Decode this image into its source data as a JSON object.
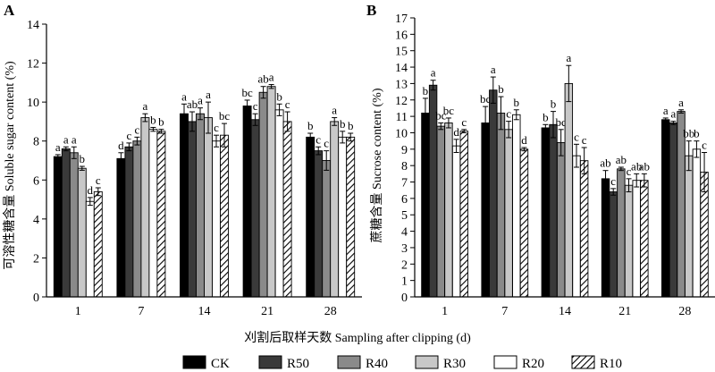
{
  "legend": [
    {
      "label": "CK",
      "fill": "#000000"
    },
    {
      "label": "R50",
      "fill": "#3a3a3a"
    },
    {
      "label": "R40",
      "fill": "#8a8a8a"
    },
    {
      "label": "R30",
      "fill": "#c8c8c8"
    },
    {
      "label": "R20",
      "fill": "#ffffff"
    },
    {
      "label": "R10",
      "fill": "hatch"
    }
  ],
  "shared_xlabel": "刈割后取样天数 Sampling after clipping (d)",
  "chart_data": [
    {
      "type": "bar",
      "panel": "A",
      "ylabel": "可溶性糖含量 Soluble sugar content (%)",
      "ylim": [
        0,
        14
      ],
      "yticks": [
        0,
        2,
        4,
        6,
        8,
        10,
        12,
        14
      ],
      "categories": [
        "1",
        "7",
        "14",
        "21",
        "28"
      ],
      "series": [
        {
          "name": "CK",
          "values": [
            7.2,
            7.1,
            9.4,
            9.8,
            8.2
          ],
          "errors": [
            0.1,
            0.3,
            0.5,
            0.3,
            0.2
          ],
          "labels": [
            "a",
            "d",
            "a",
            "bc",
            "b"
          ]
        },
        {
          "name": "R50",
          "values": [
            7.6,
            7.7,
            9.0,
            9.1,
            7.5
          ],
          "errors": [
            0.1,
            0.2,
            0.5,
            0.3,
            0.2
          ],
          "labels": [
            "a",
            "c",
            "ab",
            "c",
            "c"
          ]
        },
        {
          "name": "R40",
          "values": [
            7.4,
            8.0,
            9.4,
            10.5,
            7.0
          ],
          "errors": [
            0.3,
            0.2,
            0.3,
            0.3,
            0.5
          ],
          "labels": [
            "a",
            "c",
            "a",
            "ab",
            "c"
          ]
        },
        {
          "name": "R30",
          "values": [
            6.6,
            9.2,
            9.2,
            10.8,
            9.0
          ],
          "errors": [
            0.1,
            0.2,
            0.8,
            0.1,
            0.2
          ],
          "labels": [
            "b",
            "a",
            "a",
            "a",
            "a"
          ]
        },
        {
          "name": "R20",
          "values": [
            4.9,
            8.6,
            8.0,
            9.6,
            8.2
          ],
          "errors": [
            0.2,
            0.1,
            0.3,
            0.3,
            0.3
          ],
          "labels": [
            "d",
            "b",
            "c",
            "b",
            "b"
          ]
        },
        {
          "name": "R10",
          "values": [
            5.4,
            8.5,
            8.3,
            9.0,
            8.2
          ],
          "errors": [
            0.2,
            0.1,
            0.6,
            0.5,
            0.2
          ],
          "labels": [
            "c",
            "b",
            "bc",
            "c",
            "b"
          ]
        }
      ]
    },
    {
      "type": "bar",
      "panel": "B",
      "ylabel": "蔗糖含量 Sucrose content (%)",
      "ylim": [
        0,
        17
      ],
      "yticks": [
        0,
        1,
        2,
        3,
        4,
        5,
        6,
        7,
        8,
        9,
        10,
        11,
        12,
        13,
        14,
        15,
        16,
        17
      ],
      "categories": [
        "1",
        "7",
        "14",
        "21",
        "28"
      ],
      "series": [
        {
          "name": "CK",
          "values": [
            11.2,
            10.6,
            10.3,
            7.2,
            10.8
          ],
          "errors": [
            0.9,
            1.0,
            0.2,
            0.5,
            0.1
          ],
          "labels": [
            "b",
            "bc",
            "b",
            "ab",
            "a"
          ]
        },
        {
          "name": "R50",
          "values": [
            12.9,
            12.6,
            10.5,
            6.4,
            10.6
          ],
          "errors": [
            0.3,
            0.8,
            0.8,
            0.2,
            0.1
          ],
          "labels": [
            "a",
            "a",
            "b",
            "c",
            "a"
          ]
        },
        {
          "name": "R40",
          "values": [
            10.4,
            11.2,
            9.4,
            7.8,
            11.3
          ],
          "errors": [
            0.2,
            1.0,
            0.8,
            0.1,
            0.1
          ],
          "labels": [
            "bc",
            "b",
            "bc",
            "ab",
            "a"
          ]
        },
        {
          "name": "R30",
          "values": [
            10.6,
            10.2,
            13.0,
            6.8,
            8.6
          ],
          "errors": [
            0.3,
            0.5,
            1.1,
            0.4,
            0.9
          ],
          "labels": [
            "bc",
            "c",
            "a",
            "c",
            "bb"
          ]
        },
        {
          "name": "R20",
          "values": [
            9.2,
            11.1,
            8.6,
            7.1,
            9.0
          ],
          "errors": [
            0.4,
            0.3,
            0.7,
            0.4,
            0.5
          ],
          "labels": [
            "d",
            "b",
            "c",
            "ab",
            "b"
          ]
        },
        {
          "name": "R10",
          "values": [
            10.1,
            9.0,
            8.3,
            7.1,
            7.6
          ],
          "errors": [
            0.1,
            0.1,
            0.8,
            0.4,
            1.2
          ],
          "labels": [
            "c",
            "d",
            "c",
            "ab",
            "c"
          ]
        }
      ]
    }
  ]
}
